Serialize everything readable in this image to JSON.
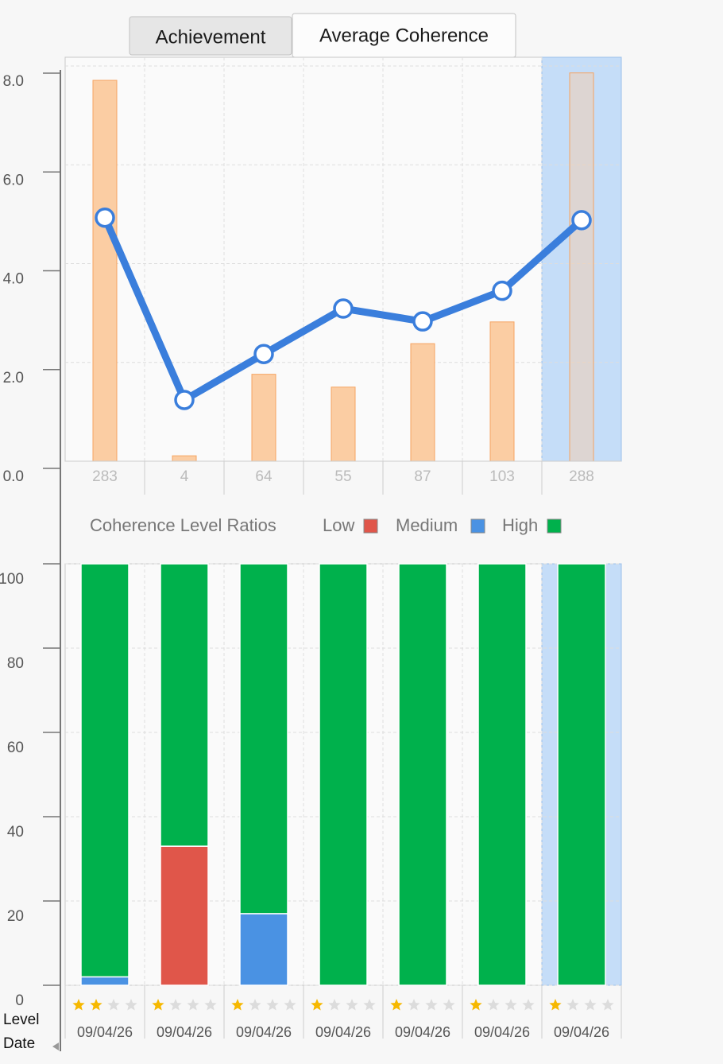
{
  "tabs": [
    "Achievement",
    "Average Coherence"
  ],
  "active_tab": 1,
  "chart_data": [
    {
      "type": "combo",
      "categories": [
        "283",
        "4",
        "64",
        "55",
        "87",
        "103",
        "288"
      ],
      "selected_index": 6,
      "highlight_color": "#c5ddf8",
      "series": [
        {
          "kind": "bar",
          "color": "#fbcda3",
          "edge_color": "#f5a462",
          "values": [
            7.71,
            0.11,
            1.76,
            1.5,
            2.38,
            2.82,
            7.86
          ]
        },
        {
          "kind": "line",
          "color": "#3a7edc",
          "values": [
            4.93,
            1.24,
            2.17,
            3.09,
            2.83,
            3.45,
            4.88
          ]
        }
      ],
      "ylim": [
        0,
        8
      ],
      "yticks": [
        {
          "value": 0,
          "label": "0.0"
        },
        {
          "value": 2,
          "label": "2.0"
        },
        {
          "value": 4,
          "label": "4.0"
        },
        {
          "value": 6,
          "label": "6.0"
        },
        {
          "value": 8,
          "label": "8.0"
        }
      ],
      "grid": true
    },
    {
      "type": "stacked_bar",
      "title": "Coherence Level Ratios",
      "categories": [
        "09/04/26",
        "09/04/26",
        "09/04/26",
        "09/04/26",
        "09/04/26",
        "09/04/26",
        "09/04/26"
      ],
      "selected_index": 6,
      "highlight_color": "#c5ddf8",
      "series": [
        {
          "name": "Low",
          "color": "#e0564a",
          "values": [
            0,
            33,
            0,
            0,
            0,
            0,
            0
          ]
        },
        {
          "name": "Medium",
          "color": "#4a92e3",
          "values": [
            2,
            0,
            17,
            0,
            0,
            0,
            0
          ]
        },
        {
          "name": "High",
          "color": "#00b14c",
          "values": [
            98,
            67,
            83,
            100,
            100,
            100,
            100
          ]
        }
      ],
      "ylim": [
        0,
        100
      ],
      "yticks": [
        0,
        20,
        40,
        60,
        80,
        100
      ],
      "grid": true
    }
  ],
  "footer": {
    "row_labels": [
      "Level",
      "Date"
    ],
    "levels": [
      2,
      1,
      1,
      1,
      1,
      1,
      1
    ],
    "max_level": 4
  }
}
